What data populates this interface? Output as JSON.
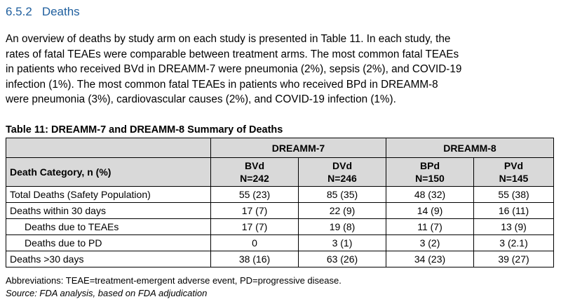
{
  "section": {
    "number": "6.5.2",
    "title": "Deaths"
  },
  "paragraph_lines": [
    "An overview of deaths by study arm on each study is presented in Table 11. In each study, the",
    "rates of fatal TEAEs were comparable between treatment arms. The most common fatal TEAEs",
    "in patients who received BVd in DREAMM-7 were pneumonia (2%), sepsis (2%), and COVID-19",
    "infection (1%). The most common fatal TEAEs in patients who received BPd in DREAMM-8",
    "were pneumonia (3%), cardiovascular causes (2%), and COVID-19 infection (1%)."
  ],
  "table": {
    "caption": "Table 11: DREAMM-7 and DREAMM-8 Summary of Deaths",
    "groups": [
      "DREAMM-7",
      "DREAMM-8"
    ],
    "row_header": "Death Category, n (%)",
    "arms": [
      {
        "name": "BVd",
        "n": "N=242"
      },
      {
        "name": "DVd",
        "n": "N=246"
      },
      {
        "name": "BPd",
        "n": "N=150"
      },
      {
        "name": "PVd",
        "n": "N=145"
      }
    ],
    "rows": [
      {
        "label": "Total Deaths (Safety Population)",
        "values": [
          "55 (23)",
          "85 (35)",
          "48 (32)",
          "55 (38)"
        ]
      },
      {
        "label": "Deaths within 30 days",
        "values": [
          "17 (7)",
          "22 (9)",
          "14 (9)",
          "16 (11)"
        ]
      },
      {
        "label": "Deaths due to TEAEs",
        "values": [
          "17 (7)",
          "19 (8)",
          "11 (7)",
          "13 (9)"
        ]
      },
      {
        "label": "Deaths due to PD",
        "values": [
          "0",
          "3 (1)",
          "3 (2)",
          "3 (2.1)"
        ]
      },
      {
        "label": "Deaths >30 days",
        "values": [
          "38 (16)",
          "63 (26)",
          "34 (23)",
          "39 (27)"
        ]
      }
    ]
  },
  "abbreviations": "Abbreviations: TEAE=treatment-emergent adverse event, PD=progressive disease.",
  "source": "Source: FDA analysis, based on FDA adjudication"
}
